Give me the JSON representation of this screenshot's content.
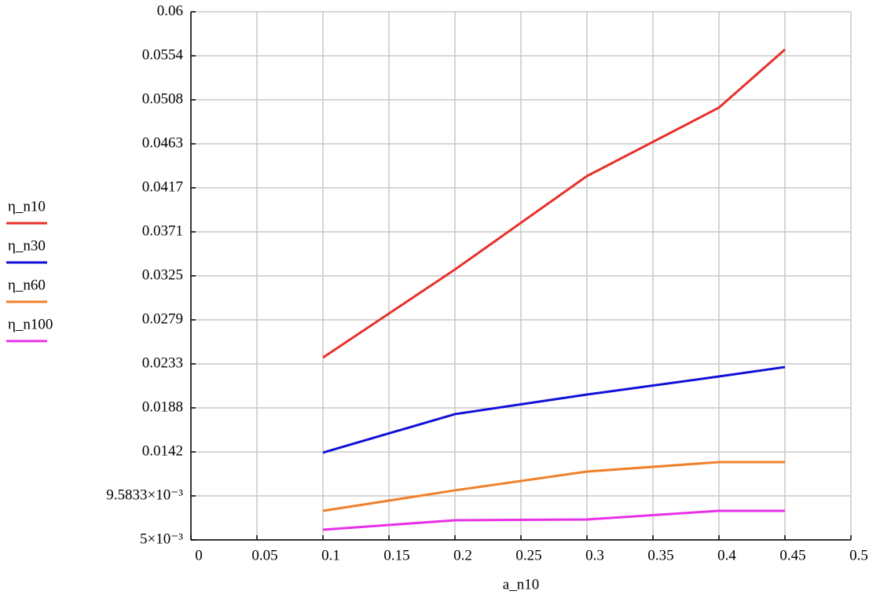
{
  "chart_data": {
    "type": "line",
    "x_label": "a_n10",
    "x": [
      0.1,
      0.2,
      0.3,
      0.4,
      0.45
    ],
    "series": [
      {
        "name": "η_n10",
        "color": "#e8302a",
        "values": [
          0.02399,
          0.03316,
          0.04289,
          0.05002,
          0.05607
        ]
      },
      {
        "name": "η_n30",
        "color": "#1010d8",
        "values": [
          0.01409,
          0.0181,
          0.02014,
          0.02202,
          0.023
        ]
      },
      {
        "name": "η_n60",
        "color": "#f0802a",
        "values": [
          0.00803,
          0.01016,
          0.01212,
          0.0131,
          0.0131
        ]
      },
      {
        "name": "η_n100",
        "color": "#e830e8",
        "values": [
          0.00606,
          0.00705,
          0.00713,
          0.00803,
          0.00803
        ]
      }
    ],
    "xlim": [
      0,
      0.5
    ],
    "xticks": [
      0,
      0.05,
      0.1,
      0.15,
      0.2,
      0.25,
      0.3,
      0.35,
      0.4,
      0.45,
      0.5
    ],
    "ylim": [
      0.005,
      0.06
    ],
    "yticks": [
      {
        "value": 0.005,
        "label": "5×10⁻³"
      },
      {
        "value": 0.0095833,
        "label": "9.5833×10⁻³"
      },
      {
        "value": 0.0141667,
        "label": "0.0142"
      },
      {
        "value": 0.01875,
        "label": "0.0188"
      },
      {
        "value": 0.0233333,
        "label": "0.0233"
      },
      {
        "value": 0.0279167,
        "label": "0.0279"
      },
      {
        "value": 0.0325,
        "label": "0.0325"
      },
      {
        "value": 0.0370833,
        "label": "0.0371"
      },
      {
        "value": 0.0416667,
        "label": "0.0417"
      },
      {
        "value": 0.04625,
        "label": "0.0463"
      },
      {
        "value": 0.0508333,
        "label": "0.0508"
      },
      {
        "value": 0.0554167,
        "label": "0.0554"
      },
      {
        "value": 0.06,
        "label": "0.06"
      }
    ],
    "grid": true
  }
}
